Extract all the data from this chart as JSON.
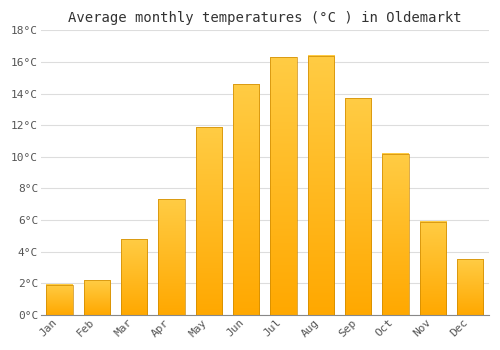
{
  "title": "Average monthly temperatures (°C ) in Oldemarkt",
  "months": [
    "Jan",
    "Feb",
    "Mar",
    "Apr",
    "May",
    "Jun",
    "Jul",
    "Aug",
    "Sep",
    "Oct",
    "Nov",
    "Dec"
  ],
  "values": [
    1.9,
    2.2,
    4.8,
    7.3,
    11.9,
    14.6,
    16.3,
    16.4,
    13.7,
    10.2,
    5.9,
    3.5
  ],
  "bar_color": "#FFA500",
  "bar_highlight": "#FFD060",
  "bar_edge": "#E8A000",
  "ylim": [
    0,
    18
  ],
  "yticks": [
    0,
    2,
    4,
    6,
    8,
    10,
    12,
    14,
    16,
    18
  ],
  "ytick_labels": [
    "0°C",
    "2°C",
    "4°C",
    "6°C",
    "8°C",
    "10°C",
    "12°C",
    "14°C",
    "16°C",
    "18°C"
  ],
  "background_color": "#ffffff",
  "grid_color": "#dddddd",
  "title_fontsize": 10,
  "tick_fontsize": 8,
  "bar_width": 0.7
}
